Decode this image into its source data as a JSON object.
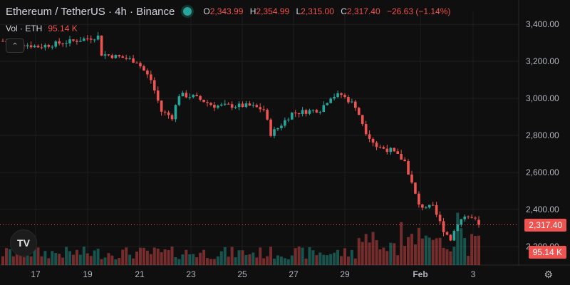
{
  "header": {
    "title": "Ethereum / TetherUS · 4h · Binance",
    "ohlc": {
      "o_label": "O",
      "o": "2,343.99",
      "h_label": "H",
      "h": "2,354.99",
      "l_label": "L",
      "l": "2,315.00",
      "c_label": "C",
      "c": "2,317.40",
      "change": "−26.63 (−1.14%)"
    }
  },
  "volume_row": {
    "label": "Vol · ETH",
    "value": "95.14 K"
  },
  "price_tag": "2,317.40",
  "volume_tag": "95.14 K",
  "logo_text": "TV",
  "icons": {
    "collapse": "chevron-up-icon",
    "settings": "gear-icon",
    "status": "status-dot-icon"
  },
  "colors": {
    "up": "#26a69a",
    "down": "#ef5350",
    "background": "#0f0f0f",
    "grid": "#1e1e1e",
    "axis_text": "#b2b5be"
  },
  "chart_data": {
    "type": "candlestick",
    "yticks": [
      "3,400.00",
      "3,200.00",
      "3,000.00",
      "2,800.00",
      "2,600.00",
      "2,400.00",
      "2,200.00"
    ],
    "ytick_values": [
      3400,
      3200,
      3000,
      2800,
      2600,
      2400,
      2200
    ],
    "xticks": [
      "17",
      "19",
      "21",
      "23",
      "25",
      "27",
      "29",
      "Feb",
      "3"
    ],
    "ylim": [
      2100,
      3470
    ],
    "last_price": 2317.4,
    "path": [
      [
        0,
        3310
      ],
      [
        10,
        3280
      ],
      [
        20,
        3310
      ],
      [
        27,
        3335
      ],
      [
        28,
        3240
      ],
      [
        34,
        3220
      ],
      [
        38,
        3200
      ],
      [
        42,
        3100
      ],
      [
        45,
        2930
      ],
      [
        48,
        2900
      ],
      [
        50,
        3020
      ],
      [
        54,
        3010
      ],
      [
        60,
        2960
      ],
      [
        70,
        2960
      ],
      [
        74,
        2940
      ],
      [
        76,
        2810
      ],
      [
        78,
        2840
      ],
      [
        82,
        2920
      ],
      [
        90,
        2940
      ],
      [
        93,
        3010
      ],
      [
        96,
        3020
      ],
      [
        100,
        2960
      ],
      [
        103,
        2820
      ],
      [
        106,
        2740
      ],
      [
        110,
        2720
      ],
      [
        114,
        2660
      ],
      [
        116,
        2540
      ],
      [
        118,
        2420
      ],
      [
        122,
        2410
      ],
      [
        125,
        2290
      ],
      [
        127,
        2240
      ],
      [
        129,
        2330
      ],
      [
        131,
        2365
      ],
      [
        134,
        2345
      ],
      [
        135,
        2317.4
      ]
    ]
  }
}
